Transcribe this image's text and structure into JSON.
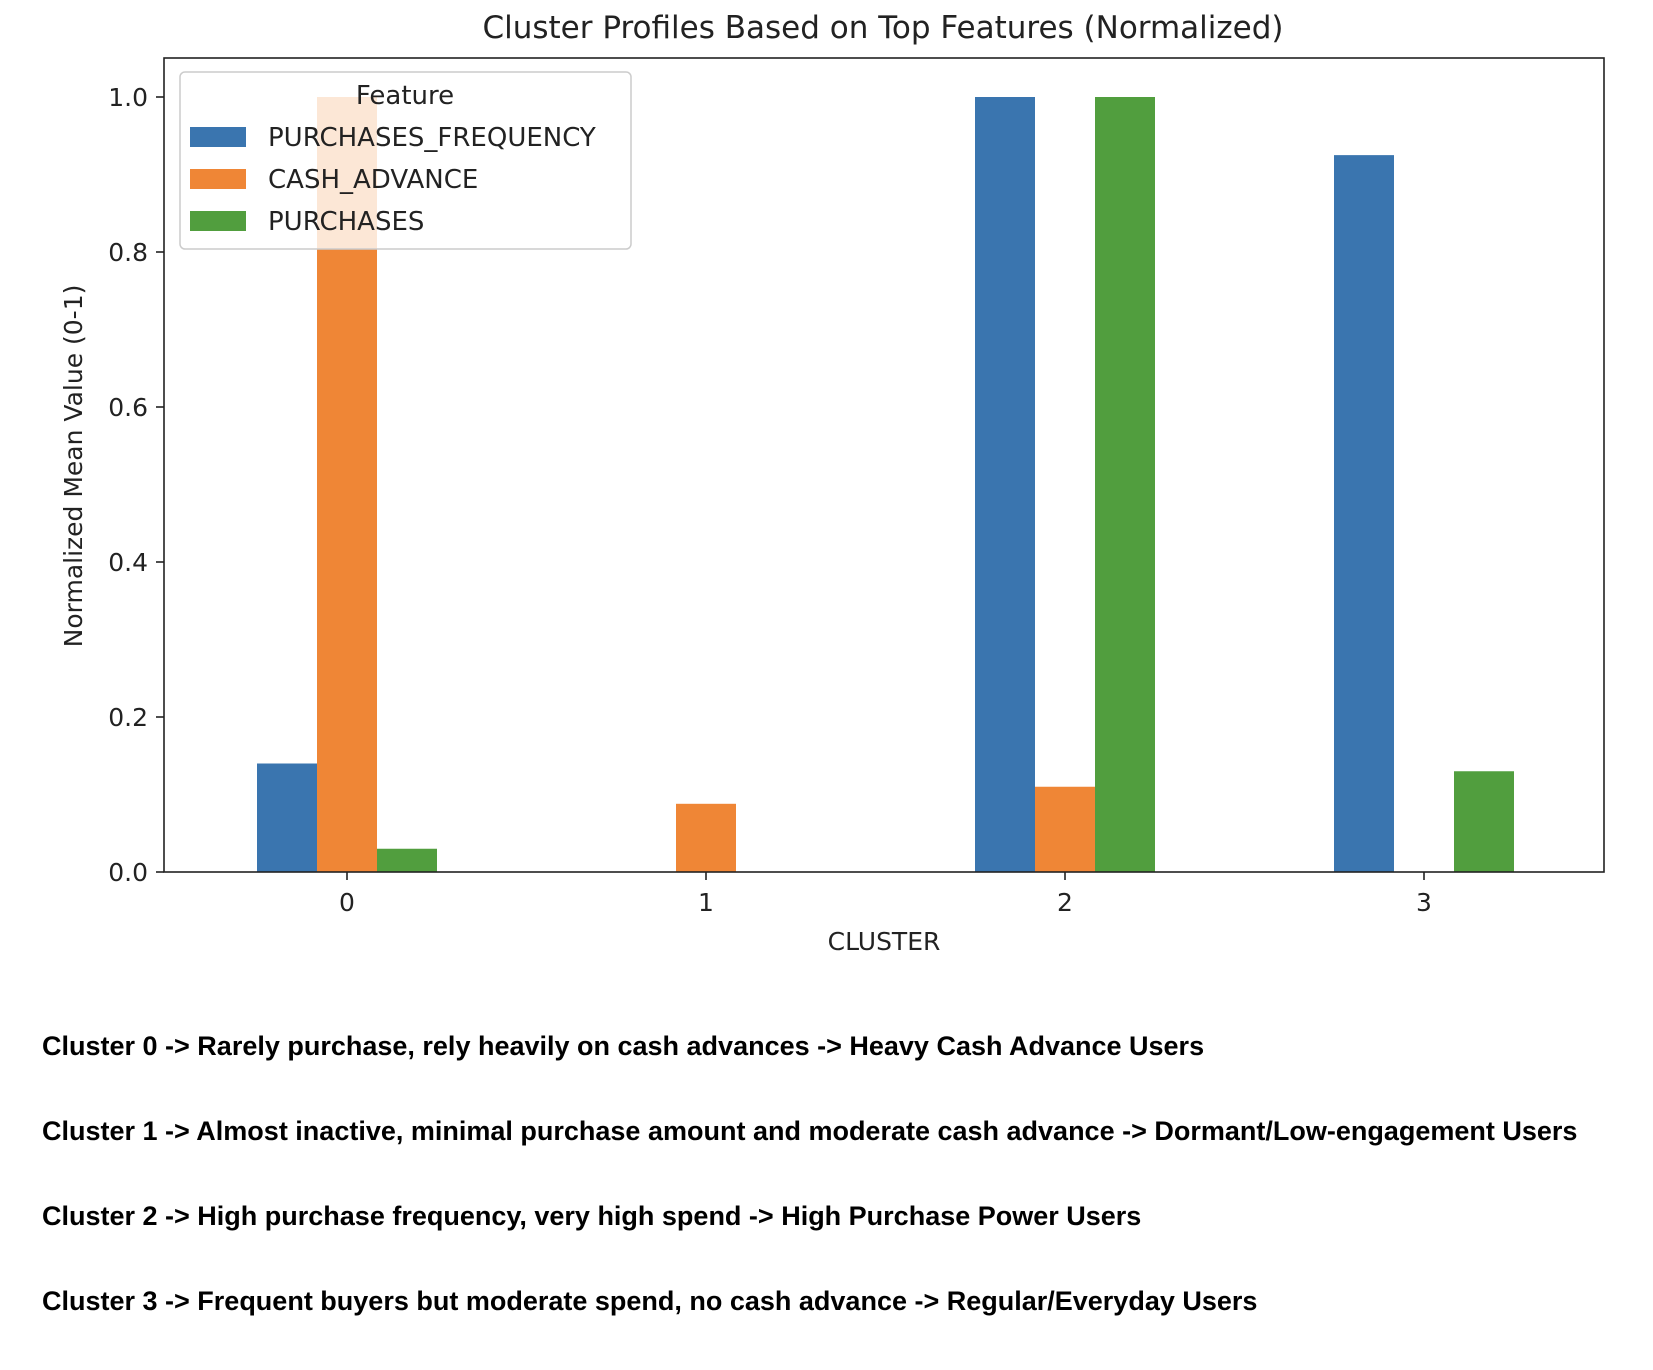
{
  "chart_data": {
    "type": "bar",
    "title": "Cluster Profiles Based on Top Features (Normalized)",
    "xlabel": "CLUSTER",
    "ylabel": "Normalized Mean Value (0-1)",
    "categories": [
      "0",
      "1",
      "2",
      "3"
    ],
    "ylim": [
      0,
      1.05
    ],
    "yticks": [
      "0.0",
      "0.2",
      "0.4",
      "0.6",
      "0.8",
      "1.0"
    ],
    "legend": {
      "title": "Feature",
      "placement": "top-left"
    },
    "grid": false,
    "series": [
      {
        "name": "PURCHASES_FREQUENCY",
        "color": "#3a75af",
        "values": [
          0.14,
          0.0,
          1.0,
          0.925
        ]
      },
      {
        "name": "CASH_ADVANCE",
        "color": "#ef8636",
        "values": [
          1.0,
          0.088,
          0.11,
          0.0
        ]
      },
      {
        "name": "PURCHASES",
        "color": "#519e3e",
        "values": [
          0.03,
          0.0,
          1.0,
          0.13
        ]
      }
    ]
  },
  "notes": [
    "Cluster 0 -> Rarely purchase, rely heavily on cash advances -> Heavy Cash Advance Users",
    "Cluster 1 -> Almost inactive, minimal purchase amount and moderate cash advance -> Dormant/Low-engagement Users",
    "Cluster 2 -> High purchase frequency, very high spend -> High Purchase Power Users",
    "Cluster 3 -> Frequent buyers but moderate spend, no cash advance -> Regular/Everyday Users"
  ]
}
